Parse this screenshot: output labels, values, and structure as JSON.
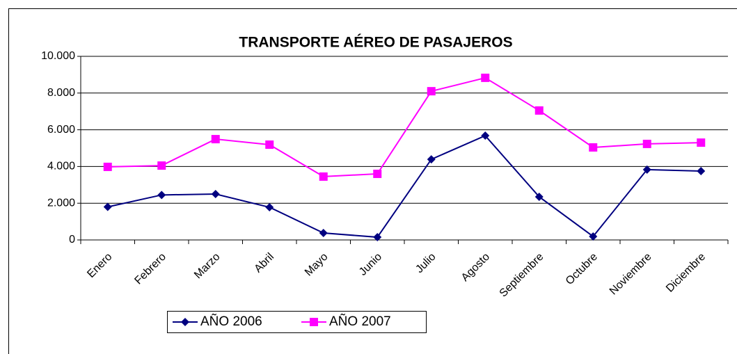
{
  "chart_data": {
    "type": "line",
    "title": "TRANSPORTE AÉREO DE PASAJEROS",
    "categories": [
      "Enero",
      "Febrero",
      "Marzo",
      "Abril",
      "Mayo",
      "Junio",
      "Julio",
      "Agosto",
      "Septiembre",
      "Octubre",
      "Noviembre",
      "Diciembre"
    ],
    "series": [
      {
        "name": "AÑO 2006",
        "color": "#000080",
        "marker": "diamond",
        "values": [
          1800,
          2450,
          2500,
          1780,
          380,
          150,
          4390,
          5680,
          2350,
          190,
          3830,
          3750
        ]
      },
      {
        "name": "AÑO 2007",
        "color": "#ff00ff",
        "marker": "square",
        "values": [
          3980,
          4050,
          5490,
          5190,
          3450,
          3600,
          8100,
          8830,
          7050,
          5040,
          5230,
          5300
        ]
      }
    ],
    "ylim": [
      0,
      10000
    ],
    "yticks": [
      0,
      {
        "value": 2000,
        "label": "2.000"
      },
      {
        "value": 4000,
        "label": "4.000"
      },
      {
        "value": 6000,
        "label": "6.000"
      },
      {
        "value": 8000,
        "label": "8.000"
      },
      {
        "value": 10000,
        "label": "10.000"
      }
    ],
    "grid": true,
    "legend": "bottom"
  }
}
